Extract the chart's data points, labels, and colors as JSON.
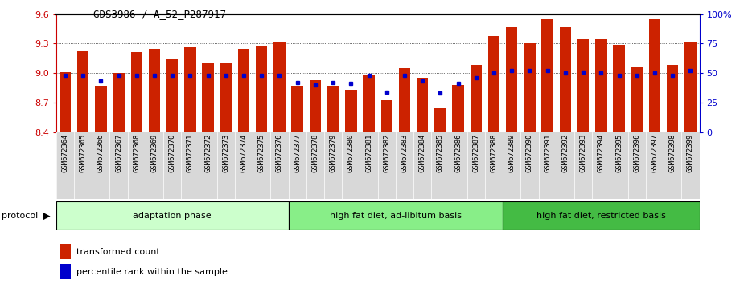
{
  "title": "GDS3986 / A_52_P287917",
  "samples": [
    "GSM672364",
    "GSM672365",
    "GSM672366",
    "GSM672367",
    "GSM672368",
    "GSM672369",
    "GSM672370",
    "GSM672371",
    "GSM672372",
    "GSM672373",
    "GSM672374",
    "GSM672375",
    "GSM672376",
    "GSM672377",
    "GSM672378",
    "GSM672379",
    "GSM672380",
    "GSM672381",
    "GSM672382",
    "GSM672383",
    "GSM672384",
    "GSM672385",
    "GSM672386",
    "GSM672387",
    "GSM672388",
    "GSM672389",
    "GSM672390",
    "GSM672391",
    "GSM672392",
    "GSM672393",
    "GSM672394",
    "GSM672395",
    "GSM672396",
    "GSM672397",
    "GSM672398",
    "GSM672399"
  ],
  "bar_values": [
    9.01,
    9.22,
    8.87,
    9.0,
    9.21,
    9.25,
    9.15,
    9.27,
    9.11,
    9.1,
    9.25,
    9.28,
    9.32,
    8.87,
    8.93,
    8.87,
    8.83,
    8.98,
    8.72,
    9.05,
    8.95,
    8.65,
    8.88,
    9.08,
    9.38,
    9.47,
    9.3,
    9.55,
    9.47,
    9.35,
    9.35,
    9.29,
    9.07,
    9.55,
    9.08,
    9.32
  ],
  "percentile_values": [
    48,
    48,
    43,
    48,
    48,
    48,
    48,
    48,
    48,
    48,
    48,
    48,
    48,
    42,
    40,
    42,
    41,
    48,
    34,
    48,
    43,
    33,
    41,
    46,
    50,
    52,
    52,
    52,
    50,
    51,
    50,
    48,
    48,
    50,
    48,
    52
  ],
  "groups": [
    {
      "label": "adaptation phase",
      "start": 0,
      "end": 13,
      "color": "#ccffcc"
    },
    {
      "label": "high fat diet, ad-libitum basis",
      "start": 13,
      "end": 25,
      "color": "#88ee88"
    },
    {
      "label": "high fat diet, restricted basis",
      "start": 25,
      "end": 36,
      "color": "#44bb44"
    }
  ],
  "ymin": 8.4,
  "ymax": 9.6,
  "yticks_left": [
    8.4,
    8.7,
    9.0,
    9.3,
    9.6
  ],
  "yticks_right": [
    0,
    25,
    50,
    75,
    100
  ],
  "right_yticklabels": [
    "0",
    "25",
    "50",
    "75",
    "100%"
  ],
  "bar_color": "#cc2200",
  "dot_color": "#0000cc",
  "bar_width": 0.65,
  "tick_label_bg": "#d8d8d8",
  "group_label_fontsize": 8,
  "xlabel_fontsize": 6.5
}
